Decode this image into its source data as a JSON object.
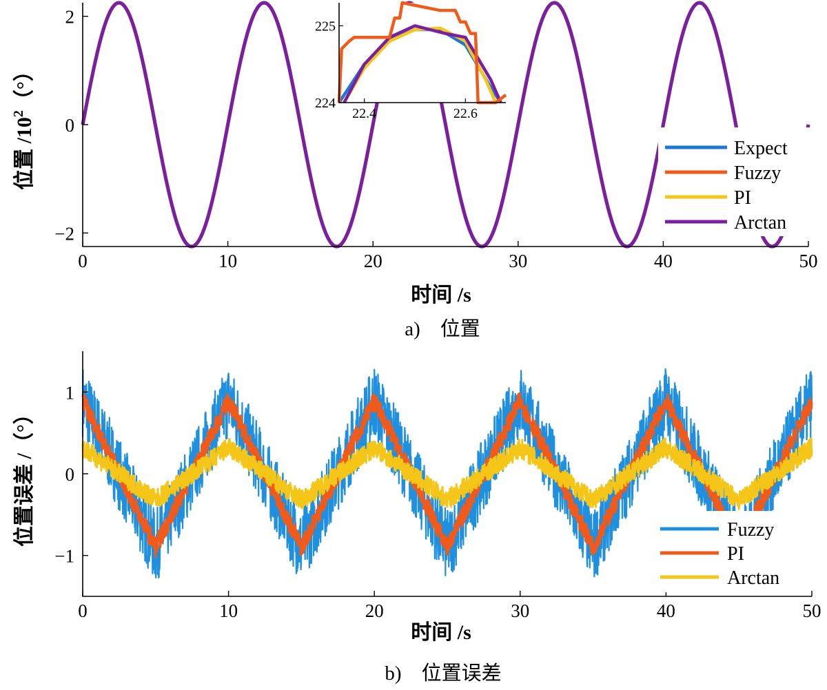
{
  "chart_data": [
    {
      "type": "line",
      "caption": "a)　位置",
      "xlabel": "时间 /s",
      "ylabel": "位置 /10",
      "ylabel_sup": "2",
      "ylabel_unit": "（°）",
      "xlim": [
        0,
        50
      ],
      "ylim": [
        -2.25,
        2.25
      ],
      "xticks": [
        "0",
        "10",
        "20",
        "30",
        "40",
        "50"
      ],
      "yticks": [
        "−2",
        "0",
        "2"
      ],
      "signal": {
        "form": "sine",
        "amplitude": 2.25,
        "period": 10,
        "phase": 0
      },
      "series": [
        {
          "name": "Expect",
          "color": "#1f77d4"
        },
        {
          "name": "Fuzzy",
          "color": "#f05a1a"
        },
        {
          "name": "PI",
          "color": "#f5c518"
        },
        {
          "name": "Arctan",
          "color": "#7b1fa2"
        }
      ],
      "legend_position": "bottom-right",
      "inset": {
        "xlim": [
          22.35,
          22.68
        ],
        "ylim": [
          224,
          225.3
        ],
        "xticks": [
          "22.4",
          "22.6"
        ],
        "yticks": [
          "224",
          "225"
        ],
        "series": [
          {
            "name": "Expect",
            "x": [
              22.35,
              22.4,
              22.45,
              22.5,
              22.55,
              22.6,
              22.65,
              22.67
            ],
            "y": [
              224.0,
              224.5,
              224.82,
              224.95,
              224.95,
              224.75,
              224.2,
              224.0
            ]
          },
          {
            "name": "PI",
            "x": [
              22.36,
              22.4,
              22.45,
              22.5,
              22.55,
              22.6,
              22.64,
              22.66
            ],
            "y": [
              224.0,
              224.45,
              224.8,
              224.95,
              224.97,
              224.8,
              224.3,
              224.0
            ]
          },
          {
            "name": "Arctan",
            "x": [
              22.36,
              22.4,
              22.45,
              22.5,
              22.56,
              22.6,
              22.65,
              22.67
            ],
            "y": [
              224.0,
              224.5,
              224.85,
              225.0,
              224.9,
              224.85,
              224.3,
              224.0
            ]
          },
          {
            "name": "Fuzzy",
            "x": [
              22.35,
              22.355,
              22.37,
              22.38,
              22.4,
              22.45,
              22.46,
              22.47,
              22.475,
              22.55,
              22.58,
              22.59,
              22.6,
              22.61,
              22.62,
              22.625,
              22.64,
              22.66,
              22.68
            ],
            "y": [
              224.0,
              224.7,
              224.8,
              224.85,
              224.85,
              224.85,
              225.1,
              225.1,
              225.3,
              225.2,
              225.2,
              225.05,
              225.05,
              224.9,
              224.9,
              224.0,
              224.0,
              224.0,
              224.1
            ]
          }
        ]
      }
    },
    {
      "type": "line",
      "caption": "b)　位置误差",
      "xlabel": "时间 /s",
      "ylabel": "位置误差 /（°）",
      "xlim": [
        0,
        50
      ],
      "ylim": [
        -1.5,
        1.5
      ],
      "xticks": [
        "0",
        "10",
        "20",
        "30",
        "40",
        "50"
      ],
      "yticks": [
        "−1",
        "0",
        "1"
      ],
      "series": [
        {
          "name": "Fuzzy",
          "color": "#1f8fe0",
          "form": "triangle",
          "amplitude": 0.9,
          "period": 10,
          "peak_at": 0,
          "noise_band": 0.45
        },
        {
          "name": "PI",
          "color": "#f05a1a",
          "form": "triangle",
          "amplitude": 0.9,
          "period": 10,
          "peak_at": 0,
          "noise_band": 0.12
        },
        {
          "name": "Arctan",
          "color": "#f5c518",
          "form": "triangle",
          "amplitude": 0.32,
          "period": 10,
          "peak_at": 0,
          "noise_band": 0.12
        }
      ],
      "legend_position": "bottom-right"
    }
  ]
}
